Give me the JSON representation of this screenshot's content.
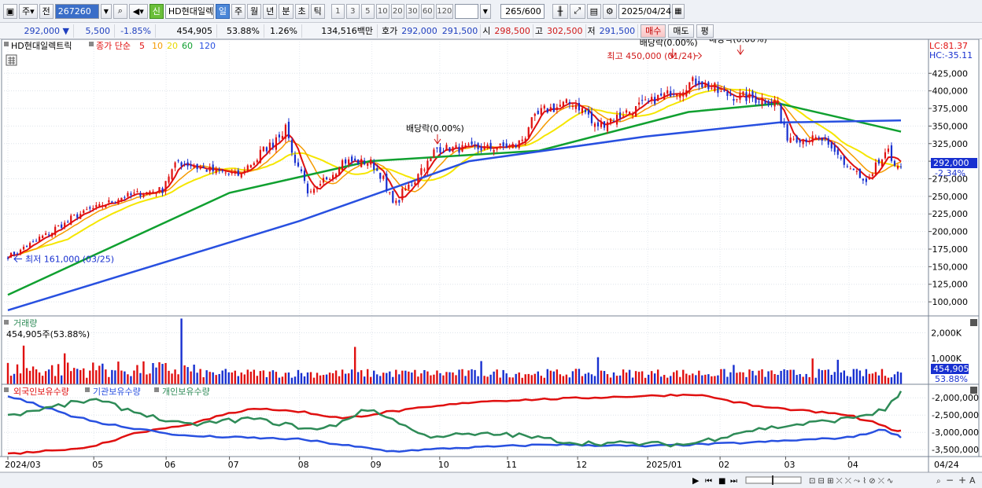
{
  "toolbar": {
    "period_label": "주",
    "prev_label": "전",
    "code": "267260",
    "badge": "신",
    "stock_name": "HD현대일렉",
    "tabs": [
      "일",
      "주",
      "월",
      "년",
      "분",
      "초",
      "틱"
    ],
    "minute_options": [
      "1",
      "3",
      "5",
      "10",
      "20",
      "30",
      "60",
      "120"
    ],
    "count": "265",
    "count_total": "/600",
    "date": "2025/04/24"
  },
  "quote": {
    "price": "292,000",
    "change_arrow": "▼",
    "change": "5,500",
    "change_pct": "-1.85%",
    "volume": "454,905",
    "vol_ratio": "53.88%",
    "turnover_rate": "1.26%",
    "amount": "134,516백만",
    "hoga_label": "호가",
    "ask": "292,000",
    "bid": "291,500",
    "open_label": "시",
    "open": "298,500",
    "high_label": "고",
    "high": "302,500",
    "low_label": "저",
    "low": "291,500",
    "buy_label": "매수",
    "sell_label": "매도",
    "eval_label": "평"
  },
  "colors": {
    "up": "#e01010",
    "down": "#1830d0",
    "ma5": "#e01010",
    "ma10": "#f59a00",
    "ma20": "#f5e600",
    "ma60": "#10a030",
    "ma120": "#2850e0",
    "foreign": "#e01010",
    "institution": "#2850e0",
    "individual": "#2e8b57"
  },
  "chart_data": [
    {
      "type": "candlestick",
      "title": "HD현대일렉트릭",
      "legend": [
        "종가 단순",
        "5",
        "10",
        "20",
        "60",
        "120"
      ],
      "ylim": [
        80000,
        470000
      ],
      "yticks": [
        "425,000",
        "400,000",
        "375,000",
        "350,000",
        "325,000",
        "300,000",
        "275,000",
        "250,000",
        "225,000",
        "200,000",
        "175,000",
        "150,000",
        "125,000",
        "100,000"
      ],
      "last_price_label": "292,000",
      "last_change_label": "-2.34%",
      "lc_label": "LC:81.37",
      "hc_label": "HC:-35.11",
      "max_annotation": "최고 450,000 (01/24)",
      "min_annotation": "최저 161,000 (03/25)",
      "dividend_annotations": [
        "배당락(0.00%)",
        "배당락(0.00%)",
        "배당락(0.00%)"
      ],
      "anchors": [
        [
          "2024-03-25",
          165000
        ],
        [
          "2024-04-10",
          195000
        ],
        [
          "2024-04-25",
          225000
        ],
        [
          "2024-05-15",
          250000
        ],
        [
          "2024-06-01",
          260000
        ],
        [
          "2024-06-07",
          300000
        ],
        [
          "2024-06-20",
          288000
        ],
        [
          "2024-07-05",
          280000
        ],
        [
          "2024-07-25",
          345000
        ],
        [
          "2024-08-05",
          250000
        ],
        [
          "2024-08-20",
          300000
        ],
        [
          "2024-09-02",
          298000
        ],
        [
          "2024-09-12",
          240000
        ],
        [
          "2024-10-01",
          318000
        ],
        [
          "2024-10-20",
          318000
        ],
        [
          "2024-11-05",
          322000
        ],
        [
          "2024-11-15",
          370000
        ],
        [
          "2024-12-01",
          385000
        ],
        [
          "2024-12-10",
          350000
        ],
        [
          "2024-12-31",
          380000
        ],
        [
          "2025-01-24",
          415000
        ],
        [
          "2025-02-05",
          395000
        ],
        [
          "2025-02-28",
          385000
        ],
        [
          "2025-03-05",
          335000
        ],
        [
          "2025-03-20",
          330000
        ],
        [
          "2025-04-09",
          268000
        ],
        [
          "2025-04-18",
          312000
        ],
        [
          "2025-04-24",
          292000
        ]
      ],
      "ma_endpoints": {
        "ma60": [
          [
            "2024-03-25",
            110000
          ],
          [
            "2024-07-01",
            255000
          ],
          [
            "2024-09-01",
            300000
          ],
          [
            "2024-11-15",
            315000
          ],
          [
            "2025-01-20",
            370000
          ],
          [
            "2025-03-01",
            382000
          ],
          [
            "2025-04-24",
            342000
          ]
        ],
        "ma120": [
          [
            "2024-03-25",
            88000
          ],
          [
            "2024-08-01",
            215000
          ],
          [
            "2024-10-15",
            300000
          ],
          [
            "2025-01-01",
            335000
          ],
          [
            "2025-03-01",
            355000
          ],
          [
            "2025-04-24",
            358000
          ]
        ]
      }
    },
    {
      "type": "bar",
      "title": "거래량",
      "subtitle": "454,905주(53.88%)",
      "ylim": [
        0,
        2500000
      ],
      "yticks": [
        "2,000K",
        "1,000K"
      ],
      "last_label": "454,905",
      "last_pct": "53.88%"
    },
    {
      "type": "line",
      "legend": [
        "외국인보유수량",
        "기관보유수량",
        "개인보유수량"
      ],
      "ylim": [
        -3700000,
        -1700000
      ],
      "yticks": [
        "-2,000,000",
        "-2,500,000",
        "-3,000,000",
        "-3,500,000"
      ],
      "series": [
        {
          "name": "외국인보유수량",
          "points": [
            [
              "2024-03-25",
              -3620000
            ],
            [
              "2024-05-01",
              -3420000
            ],
            [
              "2024-05-20",
              -3000000
            ],
            [
              "2024-06-10",
              -2800000
            ],
            [
              "2024-07-10",
              -2300000
            ],
            [
              "2024-08-01",
              -2400000
            ],
            [
              "2024-08-20",
              -2600000
            ],
            [
              "2024-09-10",
              -2400000
            ],
            [
              "2024-10-20",
              -2100000
            ],
            [
              "2025-01-24",
              -1900000
            ],
            [
              "2025-02-20",
              -2250000
            ],
            [
              "2025-04-01",
              -2500000
            ],
            [
              "2025-04-24",
              -2970000
            ]
          ]
        },
        {
          "name": "기관보유수량",
          "points": [
            [
              "2024-03-25",
              -1950000
            ],
            [
              "2024-05-01",
              -2700000
            ],
            [
              "2024-06-10",
              -3100000
            ],
            [
              "2024-08-01",
              -3200000
            ],
            [
              "2024-09-10",
              -3550000
            ],
            [
              "2024-10-10",
              -3450000
            ],
            [
              "2024-11-20",
              -3350000
            ],
            [
              "2025-01-01",
              -3400000
            ],
            [
              "2025-02-15",
              -3300000
            ],
            [
              "2025-04-01",
              -3150000
            ],
            [
              "2025-04-18",
              -2900000
            ],
            [
              "2025-04-24",
              -3130000
            ]
          ]
        },
        {
          "name": "개인보유수량",
          "points": [
            [
              "2024-03-25",
              -2500000
            ],
            [
              "2024-05-01",
              -2050000
            ],
            [
              "2024-06-10",
              -2800000
            ],
            [
              "2024-07-10",
              -2600000
            ],
            [
              "2024-08-10",
              -2950000
            ],
            [
              "2024-09-01",
              -2300000
            ],
            [
              "2024-09-25",
              -3100000
            ],
            [
              "2024-11-01",
              -3050000
            ],
            [
              "2024-12-01",
              -3300000
            ],
            [
              "2025-01-20",
              -3350000
            ],
            [
              "2025-02-15",
              -2950000
            ],
            [
              "2025-04-01",
              -2600000
            ],
            [
              "2025-04-18",
              -2350000
            ],
            [
              "2025-04-24",
              -1850000
            ]
          ]
        }
      ]
    }
  ],
  "xaxis": {
    "ticks": [
      "2024/03",
      "05",
      "06",
      "07",
      "08",
      "09",
      "10",
      "11",
      "12",
      "2025/01",
      "02",
      "03",
      "04"
    ],
    "end_label": "04/24"
  }
}
